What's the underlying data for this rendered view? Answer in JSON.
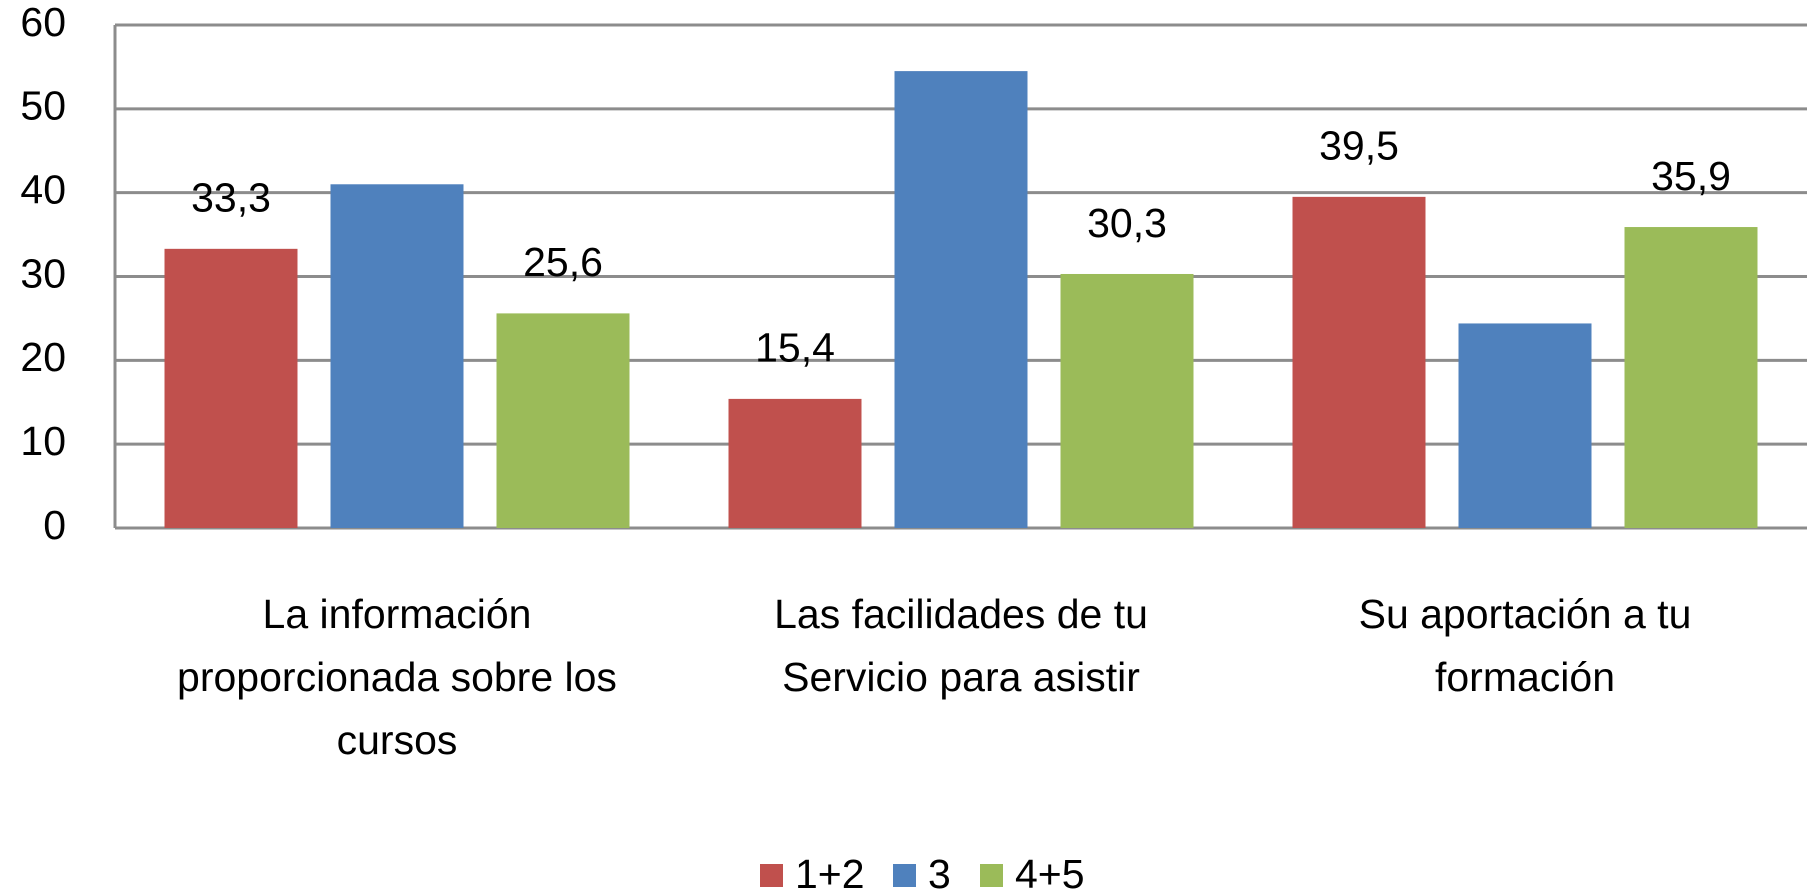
{
  "chart_data": {
    "type": "bar",
    "categories": [
      [
        "La información",
        "proporcionada sobre los",
        "cursos"
      ],
      [
        "Las facilidades  de tu",
        "Servicio para asistir"
      ],
      [
        "Su aportación  a tu",
        "formación"
      ]
    ],
    "series": [
      {
        "name": "1+2",
        "color": "#c0504d",
        "values": [
          33.3,
          15.4,
          39.5
        ],
        "value_labels": [
          "33,3",
          "15,4",
          "39,5"
        ]
      },
      {
        "name": "3",
        "color": "#4f81bd",
        "values": [
          41,
          54.5,
          24.4
        ]
      },
      {
        "name": "4+5",
        "color": "#9bbb59",
        "values": [
          25.6,
          30.3,
          35.9
        ],
        "value_labels": [
          "25,6",
          "30,3",
          "35,9"
        ]
      }
    ],
    "ylim": [
      0,
      60
    ],
    "yticks": [
      0,
      10,
      20,
      30,
      40,
      50,
      60
    ],
    "grid": true,
    "legend": "bottom"
  }
}
